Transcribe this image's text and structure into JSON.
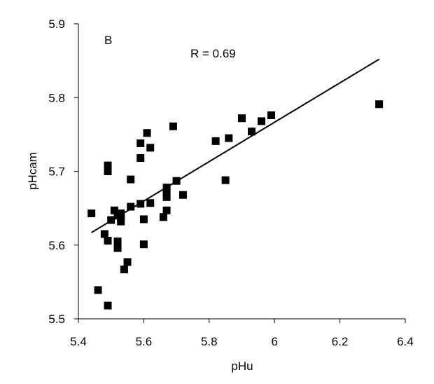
{
  "chart_data": {
    "type": "scatter",
    "panel_label": "B",
    "annotation": "R = 0.69",
    "xlabel": "pHu",
    "ylabel": "pHcam",
    "xlim": [
      5.4,
      6.4
    ],
    "ylim": [
      5.5,
      5.9
    ],
    "xticks": [
      5.4,
      5.6,
      5.8,
      6.0,
      6.2,
      6.4
    ],
    "xtick_labels": [
      "5.4",
      "5.6",
      "5.8",
      "6",
      "6.2",
      "6.4"
    ],
    "yticks": [
      5.5,
      5.6,
      5.7,
      5.8,
      5.9
    ],
    "ytick_labels": [
      "5.5",
      "5.6",
      "5.7",
      "5.8",
      "5.9"
    ],
    "grid": false,
    "legend": "none",
    "marker": "square",
    "colors": {
      "marker": "#000000",
      "line": "#000000"
    },
    "series": [
      {
        "x": [
          5.44,
          5.46,
          5.48,
          5.49,
          5.49,
          5.49,
          5.49,
          5.5,
          5.51,
          5.52,
          5.52,
          5.52,
          5.53,
          5.53,
          5.53,
          5.54,
          5.55,
          5.56,
          5.56,
          5.59,
          5.59,
          5.59,
          5.6,
          5.6,
          5.61,
          5.62,
          5.62,
          5.66,
          5.67,
          5.67,
          5.67,
          5.67,
          5.69,
          5.7,
          5.72,
          5.82,
          5.85,
          5.86,
          5.9,
          5.93,
          5.96,
          5.99,
          6.32
        ],
        "y": [
          5.643,
          5.539,
          5.615,
          5.518,
          5.606,
          5.7,
          5.708,
          5.634,
          5.647,
          5.64,
          5.605,
          5.596,
          5.643,
          5.637,
          5.632,
          5.567,
          5.577,
          5.652,
          5.689,
          5.656,
          5.718,
          5.738,
          5.635,
          5.601,
          5.752,
          5.657,
          5.732,
          5.638,
          5.647,
          5.665,
          5.672,
          5.678,
          5.761,
          5.687,
          5.668,
          5.741,
          5.688,
          5.745,
          5.772,
          5.754,
          5.768,
          5.776,
          5.791
        ]
      }
    ],
    "trendline": {
      "x": [
        5.44,
        6.32
      ],
      "y": [
        5.617,
        5.852
      ]
    }
  }
}
